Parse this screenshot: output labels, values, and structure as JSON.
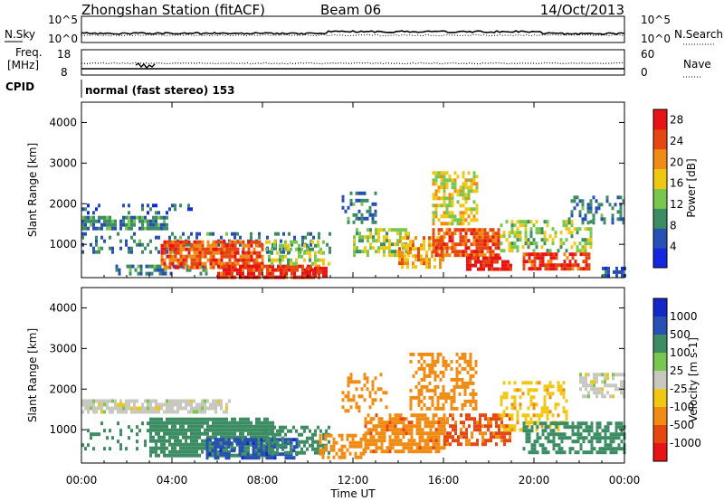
{
  "header": {
    "station": "Zhongshan Station (fitACF)",
    "beam": "Beam 06",
    "date": "14/Oct/2013"
  },
  "sky_panel": {
    "left_label": "N.Sky",
    "left_ticks": [
      "10^5",
      "10^0"
    ],
    "right_ticks": [
      "10^5",
      "10^0"
    ],
    "right_label": "N.Search"
  },
  "freq_panel": {
    "left_label_1": "Freq.",
    "left_label_2": "[MHz]",
    "left_ticks": [
      "18",
      "8"
    ],
    "right_ticks": [
      "60",
      "0"
    ],
    "right_label": "Nave"
  },
  "cpid": {
    "label": "CPID",
    "text": "normal (fast stereo) 153"
  },
  "x_axis": {
    "label": "Time UT",
    "ticks": [
      "00:00",
      "04:00",
      "08:00",
      "12:00",
      "16:00",
      "20:00",
      "00:00"
    ]
  },
  "colors": {
    "power": [
      "#1428e0",
      "#2850b4",
      "#3c8c64",
      "#78c850",
      "#f0c814",
      "#f08c14",
      "#e6460f",
      "#e61414"
    ],
    "velocity": [
      "#e61414",
      "#e6460f",
      "#f08c14",
      "#f0c814",
      "#c8c8be",
      "#78c850",
      "#3c8c64",
      "#2850b4",
      "#1428c8"
    ]
  },
  "chart_data": [
    {
      "type": "heatmap",
      "title": "",
      "xlabel": "Time UT",
      "ylabel": "Slant Range [km]",
      "x_range_hours": [
        0,
        24
      ],
      "ylim": [
        180,
        4500
      ],
      "yticks": [
        1000,
        2000,
        3000,
        4000
      ],
      "colorbar": {
        "label": "Power [dB]",
        "ticks": [
          4,
          8,
          12,
          16,
          20,
          24,
          28
        ],
        "range": [
          0,
          30
        ]
      },
      "regions": [
        {
          "t": [
            0,
            3.8
          ],
          "r": [
            1400,
            1700
          ],
          "v": 9,
          "d": 0.85
        },
        {
          "t": [
            0,
            5.0
          ],
          "r": [
            1750,
            2000
          ],
          "v": 6,
          "d": 0.25
        },
        {
          "t": [
            0,
            11.0
          ],
          "r": [
            800,
            1300
          ],
          "v": 8,
          "d": 0.3
        },
        {
          "t": [
            1.5,
            5.5
          ],
          "r": [
            250,
            500
          ],
          "v": 8,
          "d": 0.5
        },
        {
          "t": [
            3.5,
            8.0
          ],
          "r": [
            400,
            1100
          ],
          "v": 24,
          "d": 0.85
        },
        {
          "t": [
            6.0,
            10.5
          ],
          "r": [
            200,
            500
          ],
          "v": 26,
          "d": 0.8
        },
        {
          "t": [
            8.0,
            11.0
          ],
          "r": [
            500,
            1100
          ],
          "v": 14,
          "d": 0.45
        },
        {
          "t": [
            9.8,
            10.8
          ],
          "r": [
            200,
            450
          ],
          "v": 28,
          "d": 0.85
        },
        {
          "t": [
            11.5,
            13.0
          ],
          "r": [
            1500,
            2300
          ],
          "v": 8,
          "d": 0.4
        },
        {
          "t": [
            12.0,
            14.5
          ],
          "r": [
            700,
            1400
          ],
          "v": 14,
          "d": 0.55
        },
        {
          "t": [
            14.0,
            16.0
          ],
          "r": [
            400,
            1200
          ],
          "v": 20,
          "d": 0.6
        },
        {
          "t": [
            15.5,
            17.5
          ],
          "r": [
            1500,
            2800
          ],
          "v": 16,
          "d": 0.6
        },
        {
          "t": [
            15.5,
            18.5
          ],
          "r": [
            700,
            1400
          ],
          "v": 24,
          "d": 0.8
        },
        {
          "t": [
            17.0,
            19.0
          ],
          "r": [
            350,
            700
          ],
          "v": 28,
          "d": 0.75
        },
        {
          "t": [
            18.5,
            22.5
          ],
          "r": [
            800,
            1600
          ],
          "v": 13,
          "d": 0.45
        },
        {
          "t": [
            19.5,
            22.5
          ],
          "r": [
            400,
            800
          ],
          "v": 26,
          "d": 0.75
        },
        {
          "t": [
            21.5,
            24.0
          ],
          "r": [
            1500,
            2200
          ],
          "v": 8,
          "d": 0.4
        },
        {
          "t": [
            23.0,
            24.0
          ],
          "r": [
            250,
            450
          ],
          "v": 6,
          "d": 0.6
        }
      ]
    },
    {
      "type": "heatmap",
      "title": "",
      "xlabel": "Time UT",
      "ylabel": "Slant Range [km]",
      "x_range_hours": [
        0,
        24
      ],
      "ylim": [
        180,
        4500
      ],
      "yticks": [
        1000,
        2000,
        3000,
        4000
      ],
      "colorbar": {
        "label": "Velocity [m s-1]",
        "ticks": [
          1000,
          500,
          100,
          25,
          -25,
          -100,
          -500,
          -1000
        ]
      },
      "regions": [
        {
          "t": [
            0,
            6.5
          ],
          "r": [
            1400,
            1750
          ],
          "v": 0,
          "d": 0.8
        },
        {
          "t": [
            0,
            3.0
          ],
          "r": [
            500,
            1200
          ],
          "v": 150,
          "d": 0.25
        },
        {
          "t": [
            3.0,
            8.5
          ],
          "r": [
            400,
            1300
          ],
          "v": 300,
          "d": 0.85
        },
        {
          "t": [
            5.5,
            9.5
          ],
          "r": [
            300,
            800
          ],
          "v": 800,
          "d": 0.65
        },
        {
          "t": [
            8.0,
            11.0
          ],
          "r": [
            400,
            1100
          ],
          "v": 200,
          "d": 0.5
        },
        {
          "t": [
            10.5,
            12.5
          ],
          "r": [
            300,
            900
          ],
          "v": -300,
          "d": 0.55
        },
        {
          "t": [
            11.5,
            13.5
          ],
          "r": [
            1500,
            2400
          ],
          "v": -200,
          "d": 0.35
        },
        {
          "t": [
            12.5,
            16.0
          ],
          "r": [
            500,
            1400
          ],
          "v": -400,
          "d": 0.75
        },
        {
          "t": [
            14.5,
            17.5
          ],
          "r": [
            1500,
            2900
          ],
          "v": -150,
          "d": 0.45
        },
        {
          "t": [
            16.0,
            19.0
          ],
          "r": [
            600,
            1400
          ],
          "v": -600,
          "d": 0.6
        },
        {
          "t": [
            18.5,
            21.5
          ],
          "r": [
            1000,
            2200
          ],
          "v": -80,
          "d": 0.4
        },
        {
          "t": [
            19.5,
            24.0
          ],
          "r": [
            400,
            1200
          ],
          "v": 200,
          "d": 0.6
        },
        {
          "t": [
            22.0,
            24.0
          ],
          "r": [
            1800,
            2400
          ],
          "v": 0,
          "d": 0.6
        }
      ]
    }
  ]
}
